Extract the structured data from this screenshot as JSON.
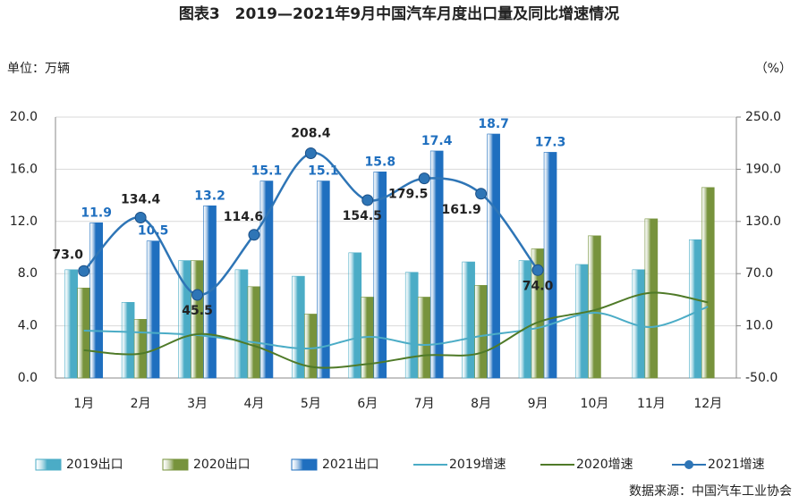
{
  "chart_data": {
    "type": "bar_line",
    "title": "图表3　2019—2021年9月中国汽车月度出口量及同比增速情况",
    "y_label": "单位：万辆",
    "y2_label": "（%）",
    "source": "数据来源：中国汽车工业协会",
    "categories": [
      "1月",
      "2月",
      "3月",
      "4月",
      "5月",
      "6月",
      "7月",
      "8月",
      "9月",
      "10月",
      "11月",
      "12月"
    ],
    "ylim": [
      0,
      20
    ],
    "yticks": [
      {
        "value": 0,
        "label": "0.0"
      },
      {
        "value": 4,
        "label": "4.0"
      },
      {
        "value": 8,
        "label": "8.0"
      },
      {
        "value": 12,
        "label": "12.0"
      },
      {
        "value": 16,
        "label": "16.0"
      },
      {
        "value": 20,
        "label": "20.0"
      }
    ],
    "y2lim": [
      -50,
      250
    ],
    "y2ticks": [
      {
        "value": -50,
        "label": "-50.0"
      },
      {
        "value": 10,
        "label": "10.0"
      },
      {
        "value": 70,
        "label": "70.0"
      },
      {
        "value": 130,
        "label": "130.0"
      },
      {
        "value": 190,
        "label": "190.0"
      },
      {
        "value": 250,
        "label": "250.0"
      }
    ],
    "grid": true,
    "series": [
      {
        "name": "2019出口",
        "kind": "bar",
        "color": "#4bacc6",
        "values": [
          8.3,
          5.8,
          9.0,
          8.3,
          7.8,
          9.6,
          8.1,
          8.9,
          9.0,
          8.7,
          8.3,
          10.6
        ]
      },
      {
        "name": "2020出口",
        "kind": "bar",
        "color": "#77933c",
        "values": [
          6.9,
          4.5,
          9.0,
          7.0,
          4.9,
          6.2,
          6.2,
          7.1,
          9.9,
          10.9,
          12.2,
          14.6
        ]
      },
      {
        "name": "2021出口",
        "kind": "bar",
        "color": "#1f6fbf",
        "values": [
          11.9,
          10.5,
          13.2,
          15.1,
          15.1,
          15.8,
          17.4,
          18.7,
          17.3,
          null,
          null,
          null
        ]
      },
      {
        "name": "2019增速",
        "kind": "line",
        "axis": "y2",
        "color": "#4bacc6",
        "values": [
          4.5,
          2.4,
          -0.7,
          -9,
          -16,
          -2.7,
          -12,
          -1.7,
          7.6,
          25,
          8.6,
          32
        ]
      },
      {
        "name": "2020增速",
        "kind": "line",
        "axis": "y2",
        "color": "#4f7a28",
        "values": [
          -18,
          -22,
          0.4,
          -13,
          -37,
          -34,
          -24,
          -21,
          14,
          28,
          48,
          37
        ]
      },
      {
        "name": "2021增速",
        "kind": "line",
        "axis": "y2",
        "color": "#2e75b6",
        "markers": true,
        "values": [
          73.0,
          134.4,
          45.5,
          114.6,
          208.4,
          154.5,
          179.5,
          161.9,
          74.0,
          null,
          null,
          null
        ],
        "value_labels": [
          "73.0",
          "134.4",
          "45.5",
          "114.6",
          "208.4",
          "154.5",
          "179.5",
          "161.9",
          "74.0",
          null,
          null,
          null
        ]
      }
    ]
  }
}
